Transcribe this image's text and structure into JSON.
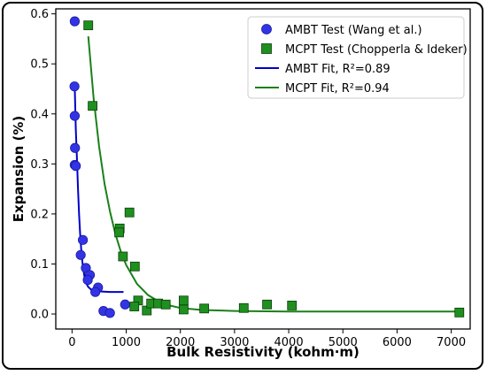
{
  "chart_data": {
    "type": "scatter",
    "xlabel": "Bulk Resistivity (kohm·m)",
    "ylabel": "Expansion (%)",
    "xlim": [
      -300,
      7350
    ],
    "ylim": [
      -0.03,
      0.61
    ],
    "x_ticks": [
      0,
      1000,
      2000,
      3000,
      4000,
      5000,
      6000,
      7000
    ],
    "y_ticks": [
      0.0,
      0.1,
      0.2,
      0.3,
      0.4,
      0.5,
      0.6
    ],
    "y_tick_labels": [
      "0.0",
      "0.1",
      "0.2",
      "0.3",
      "0.4",
      "0.5",
      "0.6"
    ],
    "grid": false,
    "legend_position": "top-right",
    "legend": [
      "AMBT Test (Wang et al.)",
      "MCPT Test (Chopperla & Ideker)",
      "AMBT Fit, R²=0.89",
      "MCPT Fit, R²=0.94"
    ],
    "series": [
      {
        "name": "AMBT Test (Wang et al.)",
        "kind": "points",
        "marker": "circle",
        "color": "#3333e6",
        "points": [
          [
            50,
            0.585
          ],
          [
            45,
            0.455
          ],
          [
            50,
            0.396
          ],
          [
            55,
            0.332
          ],
          [
            50,
            0.298
          ],
          [
            70,
            0.296
          ],
          [
            200,
            0.148
          ],
          [
            160,
            0.118
          ],
          [
            255,
            0.092
          ],
          [
            330,
            0.078
          ],
          [
            290,
            0.068
          ],
          [
            480,
            0.053
          ],
          [
            430,
            0.044
          ],
          [
            980,
            0.019
          ],
          [
            580,
            0.006
          ],
          [
            700,
            0.002
          ]
        ]
      },
      {
        "name": "MCPT Test (Chopperla & Ideker)",
        "kind": "points",
        "marker": "square",
        "color": "#1f8f1f",
        "points": [
          [
            300,
            0.577
          ],
          [
            380,
            0.416
          ],
          [
            1060,
            0.203
          ],
          [
            880,
            0.171
          ],
          [
            870,
            0.163
          ],
          [
            940,
            0.115
          ],
          [
            1160,
            0.095
          ],
          [
            1220,
            0.027
          ],
          [
            1150,
            0.015
          ],
          [
            1380,
            0.007
          ],
          [
            1460,
            0.021
          ],
          [
            1590,
            0.021
          ],
          [
            1730,
            0.019
          ],
          [
            2060,
            0.027
          ],
          [
            2060,
            0.009
          ],
          [
            2440,
            0.011
          ],
          [
            3170,
            0.012
          ],
          [
            3600,
            0.019
          ],
          [
            4060,
            0.017
          ],
          [
            7150,
            0.003
          ]
        ]
      },
      {
        "name": "AMBT Fit, R²=0.89",
        "kind": "line",
        "color": "#0000cc",
        "points": [
          [
            50,
            0.455
          ],
          [
            70,
            0.37
          ],
          [
            90,
            0.31
          ],
          [
            110,
            0.25
          ],
          [
            130,
            0.2
          ],
          [
            150,
            0.16
          ],
          [
            175,
            0.12
          ],
          [
            200,
            0.095
          ],
          [
            230,
            0.075
          ],
          [
            260,
            0.062
          ],
          [
            300,
            0.054
          ],
          [
            350,
            0.049
          ],
          [
            420,
            0.046
          ],
          [
            550,
            0.045
          ],
          [
            700,
            0.044
          ],
          [
            950,
            0.044
          ]
        ]
      },
      {
        "name": "MCPT Fit, R²=0.94",
        "kind": "line",
        "color": "#1a801a",
        "points": [
          [
            300,
            0.555
          ],
          [
            400,
            0.43
          ],
          [
            500,
            0.335
          ],
          [
            600,
            0.26
          ],
          [
            700,
            0.205
          ],
          [
            800,
            0.16
          ],
          [
            900,
            0.125
          ],
          [
            1000,
            0.098
          ],
          [
            1200,
            0.06
          ],
          [
            1400,
            0.038
          ],
          [
            1600,
            0.025
          ],
          [
            1800,
            0.017
          ],
          [
            2000,
            0.012
          ],
          [
            2400,
            0.008
          ],
          [
            3000,
            0.006
          ],
          [
            4000,
            0.005
          ],
          [
            5000,
            0.005
          ],
          [
            6000,
            0.005
          ],
          [
            7150,
            0.005
          ]
        ]
      }
    ]
  }
}
